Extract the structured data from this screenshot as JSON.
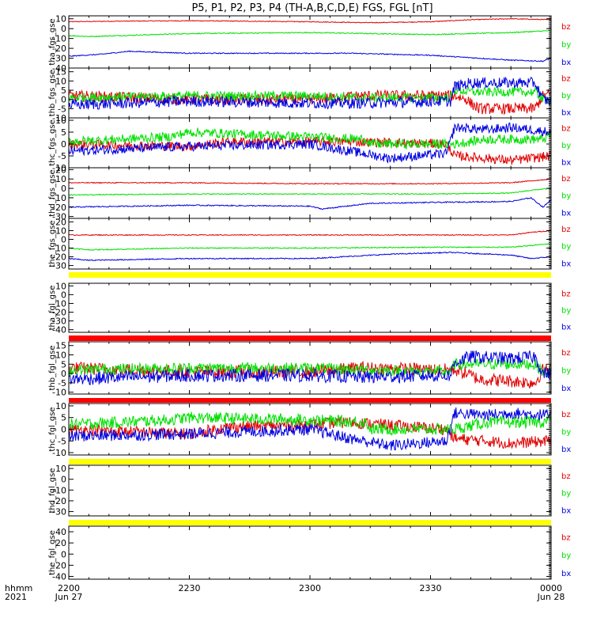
{
  "title": "P5, P1, P2, P3, P4 (TH-A,B,C,D,E) FGS, FGL [nT]",
  "x_axis": {
    "row_labels": [
      "hhmm",
      "2021"
    ],
    "ticks": [
      {
        "top": "2200",
        "bottom": "Jun 27"
      },
      {
        "top": "2230",
        "bottom": ""
      },
      {
        "top": "2300",
        "bottom": ""
      },
      {
        "top": "2330",
        "bottom": ""
      },
      {
        "top": "0000",
        "bottom": "Jun 28"
      }
    ]
  },
  "colors": {
    "bz": "#e00000",
    "by": "#00e000",
    "bx": "#0000e0",
    "bar_yellow": "#ffff00",
    "bar_red": "#ff0000"
  },
  "chart_data": {
    "type": "line",
    "x_range": [
      "2021-06-27 22:00",
      "2021-06-28 00:00"
    ],
    "panels": [
      {
        "ylabel": "tha_fgs_gse",
        "yticks": [
          10,
          0,
          -10,
          -20,
          -30,
          -40
        ],
        "ylim": [
          -40,
          13
        ],
        "legend": [
          "bz",
          "by",
          "bx"
        ],
        "has_data": true,
        "series": [
          {
            "name": "bz",
            "x": [
              0,
              10,
              30,
              60,
              75,
              90,
              100,
              110,
              120
            ],
            "y": [
              7,
              7.5,
              8,
              7,
              6,
              7,
              9,
              10,
              9
            ],
            "noise": 0.4
          },
          {
            "name": "by",
            "x": [
              0,
              5,
              30,
              60,
              90,
              110,
              120
            ],
            "y": [
              -7,
              -8,
              -5,
              -4,
              -6,
              -4,
              -2
            ],
            "noise": 0.5
          },
          {
            "name": "bx",
            "x": [
              0,
              8,
              15,
              30,
              50,
              70,
              90,
              110,
              118,
              120
            ],
            "y": [
              -28,
              -26,
              -23,
              -25,
              -25,
              -25,
              -27,
              -32,
              -33,
              -30
            ],
            "noise": 0.5
          }
        ]
      },
      {
        "ylabel": "thb_fgs_gse",
        "yticks": [
          15,
          10,
          5,
          0,
          -5,
          -10
        ],
        "ylim": [
          -10,
          17
        ],
        "legend": [
          "bz",
          "by",
          "bx"
        ],
        "has_data": true,
        "series": [
          {
            "name": "bz",
            "x": [
              0,
              30,
              60,
              73,
              92,
              96,
              99,
              100,
              102,
              110,
              116,
              118,
              120
            ],
            "y": [
              2,
              0,
              0,
              2,
              2,
              2,
              0,
              -2,
              -5,
              -5,
              -5,
              2,
              3
            ],
            "noise": 3.0
          },
          {
            "name": "by",
            "x": [
              0,
              30,
              60,
              73,
              92,
              95,
              96,
              101,
              110,
              116,
              118,
              120
            ],
            "y": [
              1,
              2,
              2,
              1,
              1,
              1,
              5,
              4,
              4,
              4,
              0,
              0
            ],
            "noise": 2.5
          },
          {
            "name": "bx",
            "x": [
              0,
              30,
              60,
              73,
              92,
              95,
              96,
              100,
              110,
              116,
              118,
              120
            ],
            "y": [
              -3,
              -1,
              -2,
              -2,
              -1,
              -1,
              7,
              9,
              9,
              9,
              0,
              -1
            ],
            "noise": 3.0
          }
        ]
      },
      {
        "ylabel": "thc_fgs_gse",
        "yticks": [
          10,
          5,
          0,
          -5,
          -10
        ],
        "ylim": [
          -10,
          11
        ],
        "legend": [
          "bz",
          "by",
          "bx"
        ],
        "has_data": true,
        "series": [
          {
            "name": "bz",
            "x": [
              0,
              30,
              40,
              60,
              70,
              94,
              96,
              104,
              110,
              120
            ],
            "y": [
              0,
              -1,
              1,
              1,
              1,
              0,
              -5,
              -6,
              -7,
              -5
            ],
            "noise": 2.0
          },
          {
            "name": "by",
            "x": [
              0,
              25,
              30,
              60,
              74,
              75,
              96,
              104,
              110,
              118,
              120
            ],
            "y": [
              1,
              3,
              5,
              3,
              2,
              0,
              0,
              2,
              2,
              2,
              4
            ],
            "noise": 2.0
          },
          {
            "name": "bx",
            "x": [
              0,
              30,
              60,
              70,
              80,
              94,
              96,
              104,
              110,
              120
            ],
            "y": [
              -3,
              -1,
              0,
              -3,
              -6,
              -4,
              7,
              6,
              7,
              5
            ],
            "noise": 2.0
          }
        ]
      },
      {
        "ylabel": "thd_fgs_gse",
        "yticks": [
          20,
          10,
          0,
          -10,
          -20,
          -30
        ],
        "ylim": [
          -32,
          22
        ],
        "legend": [
          "bz",
          "by",
          "bx"
        ],
        "has_data": true,
        "series": [
          {
            "name": "bz",
            "x": [
              0,
              30,
              60,
              90,
              110,
              115,
              120
            ],
            "y": [
              6,
              6,
              5,
              5,
              6,
              8,
              10
            ],
            "noise": 0.5
          },
          {
            "name": "by",
            "x": [
              0,
              30,
              60,
              90,
              110,
              115,
              120
            ],
            "y": [
              -7,
              -6,
              -6,
              -6,
              -5,
              -2,
              0
            ],
            "noise": 0.5
          },
          {
            "name": "bx",
            "x": [
              0,
              30,
              60,
              63,
              75,
              90,
              110,
              115,
              118,
              120
            ],
            "y": [
              -20,
              -18,
              -19,
              -22,
              -16,
              -15,
              -14,
              -10,
              -20,
              -12
            ],
            "noise": 0.6
          }
        ]
      },
      {
        "ylabel": "the_fgs_gse",
        "yticks": [
          20,
          10,
          0,
          -10,
          -20,
          -30
        ],
        "ylim": [
          -34,
          24
        ],
        "legend": [
          "bz",
          "by",
          "bx"
        ],
        "has_data": true,
        "series": [
          {
            "name": "bz",
            "x": [
              0,
              30,
              60,
              90,
              110,
              115,
              120
            ],
            "y": [
              5,
              5,
              5,
              5,
              5,
              8,
              10
            ],
            "noise": 0.5
          },
          {
            "name": "by",
            "x": [
              0,
              5,
              30,
              60,
              90,
              110,
              115,
              120
            ],
            "y": [
              -10,
              -12,
              -10,
              -10,
              -9,
              -9,
              -7,
              -5
            ],
            "noise": 0.6
          },
          {
            "name": "bx",
            "x": [
              0,
              5,
              30,
              60,
              80,
              95,
              110,
              115,
              120
            ],
            "y": [
              -22,
              -24,
              -22,
              -22,
              -17,
              -15,
              -18,
              -22,
              -20
            ],
            "noise": 0.6
          }
        ]
      },
      {
        "ylabel": "tha_fgl_gse",
        "yticks": [
          10,
          0,
          -10,
          -20,
          -30,
          -40
        ],
        "ylim": [
          -43,
          13
        ],
        "legend": [
          "bz",
          "by",
          "bx"
        ],
        "has_data": false,
        "series": []
      },
      {
        "ylabel": "thb_fgl_gse",
        "yticks": [
          15,
          10,
          5,
          0,
          -5,
          -10
        ],
        "ylim": [
          -11,
          17
        ],
        "legend": [
          "bz",
          "by",
          "bx"
        ],
        "has_data": true,
        "series": [
          {
            "name": "bz",
            "x": [
              0,
              30,
              60,
              73,
              92,
              96,
              99,
              102,
              110,
              116,
              118,
              120
            ],
            "y": [
              3,
              1,
              1,
              3,
              2,
              2,
              0,
              -3,
              -4,
              -5,
              2,
              2
            ],
            "noise": 3.5
          },
          {
            "name": "by",
            "x": [
              0,
              30,
              60,
              73,
              92,
              95,
              96,
              101,
              110,
              116,
              118,
              120
            ],
            "y": [
              2,
              3,
              3,
              2,
              1,
              1,
              5,
              5,
              5,
              5,
              1,
              1
            ],
            "noise": 3.0
          },
          {
            "name": "bx",
            "x": [
              0,
              30,
              60,
              73,
              92,
              95,
              96,
              100,
              110,
              116,
              118,
              120
            ],
            "y": [
              -3,
              -1,
              -1,
              -2,
              -1,
              -1,
              6,
              9,
              8,
              9,
              0,
              0
            ],
            "noise": 3.5
          }
        ]
      },
      {
        "ylabel": "thc_fgl_gse",
        "yticks": [
          10,
          5,
          0,
          -5,
          -10
        ],
        "ylim": [
          -11,
          11
        ],
        "legend": [
          "bz",
          "by",
          "bx"
        ],
        "has_data": true,
        "series": [
          {
            "name": "bz",
            "x": [
              0,
              30,
              40,
              60,
              70,
              94,
              96,
              104,
              110,
              120
            ],
            "y": [
              0,
              -2,
              1,
              2,
              3,
              0,
              -4,
              -5,
              -6,
              -5
            ],
            "noise": 2.5
          },
          {
            "name": "by",
            "x": [
              0,
              25,
              30,
              60,
              74,
              75,
              96,
              104,
              110,
              118,
              120
            ],
            "y": [
              2,
              4,
              5,
              4,
              3,
              0,
              0,
              3,
              3,
              3,
              5
            ],
            "noise": 2.5
          },
          {
            "name": "bx",
            "x": [
              0,
              30,
              60,
              70,
              80,
              94,
              96,
              104,
              110,
              120
            ],
            "y": [
              -3,
              -2,
              0,
              -4,
              -7,
              -5,
              7,
              6,
              7,
              6
            ],
            "noise": 2.5
          }
        ]
      },
      {
        "ylabel": "thd_fgl_gse",
        "yticks": [
          10,
          0,
          -10,
          -20,
          -30
        ],
        "ylim": [
          -34,
          13
        ],
        "legend": [
          "bz",
          "by",
          "bx"
        ],
        "has_data": false,
        "series": []
      },
      {
        "ylabel": "the_fgl_gse",
        "yticks": [
          40,
          20,
          0,
          -20,
          -40
        ],
        "ylim": [
          -45,
          50
        ],
        "legend": [
          "bz",
          "by",
          "bx"
        ],
        "has_data": false,
        "series": []
      }
    ]
  }
}
